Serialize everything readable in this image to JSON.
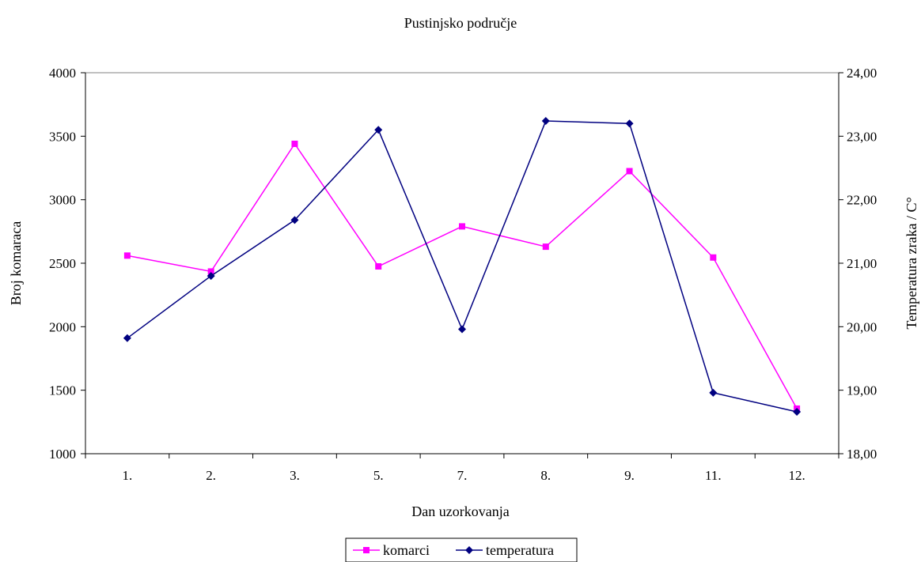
{
  "chart_data": {
    "type": "line",
    "title": "Pustinjsko područje",
    "xlabel": "Dan uzorkovanja",
    "ylabel": "Broj komaraca",
    "y2label": "Temperatura zraka / C°",
    "categories": [
      "1.",
      "2.",
      "3.",
      "5.",
      "7.",
      "8.",
      "9.",
      "11.",
      "12."
    ],
    "ylim": [
      1000,
      4000
    ],
    "yticks": [
      1000,
      1500,
      2000,
      2500,
      3000,
      3500,
      4000
    ],
    "y2lim": [
      18,
      24
    ],
    "y2ticks": [
      "18,00",
      "19,00",
      "20,00",
      "21,00",
      "22,00",
      "23,00",
      "24,00"
    ],
    "grid": false,
    "legend_position": "bottom-center",
    "series": [
      {
        "name": "komarci",
        "axis": "left",
        "color": "#ff00ff",
        "marker": "square",
        "values": [
          2560,
          2435,
          3440,
          2475,
          2790,
          2630,
          3225,
          2545,
          1355
        ]
      },
      {
        "name": "temperatura",
        "axis": "right",
        "color": "#000080",
        "marker": "diamond",
        "values": [
          19.82,
          20.8,
          21.68,
          23.1,
          19.96,
          23.24,
          23.2,
          18.96,
          18.66
        ]
      }
    ]
  }
}
